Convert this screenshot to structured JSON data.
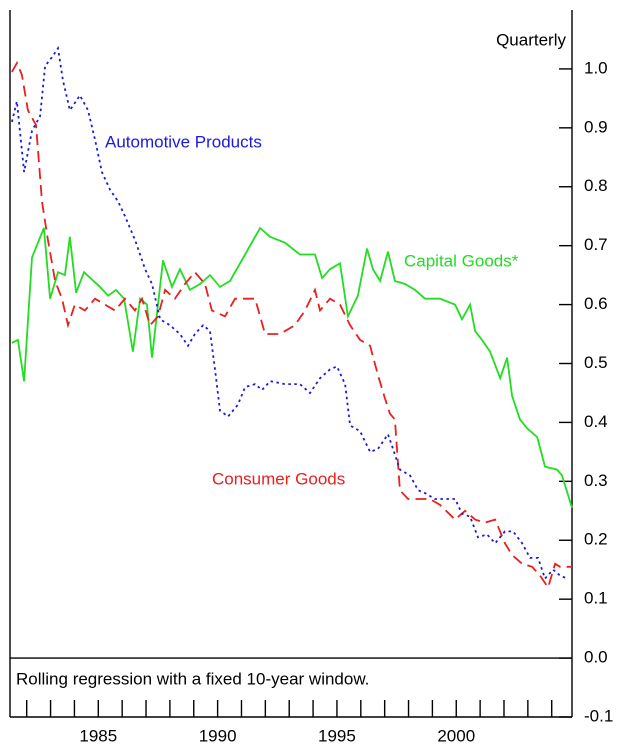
{
  "chart_data": {
    "type": "line",
    "title": "Quarterly",
    "note": "Rolling regression with a fixed 10-year window.",
    "xlim": [
      1981.3,
      2004.85
    ],
    "ylim": [
      -0.1,
      1.1
    ],
    "xticks": [
      1985,
      1990,
      1995,
      2000
    ],
    "x_minor_ticks": [
      1982,
      1983,
      1984,
      1985,
      1986,
      1987,
      1988,
      1989,
      1990,
      1991,
      1992,
      1993,
      1994,
      1995,
      1996,
      1997,
      1998,
      1999,
      2000,
      2001,
      2002,
      2003,
      2004
    ],
    "yticks": [
      -0.1,
      {
        "value": 0,
        "label": "0.0"
      },
      0.1,
      0.2,
      0.3,
      0.4,
      0.5,
      0.6,
      0.7,
      0.8,
      0.9,
      {
        "value": 1,
        "label": "1.0"
      }
    ],
    "series": [
      {
        "name": "Capital Goods*",
        "color": "#22dd22",
        "dash": "solid",
        "x": [
          1981.38,
          1981.63,
          1981.89,
          1982.22,
          1982.72,
          1982.98,
          1983.31,
          1983.6,
          1983.81,
          1984.07,
          1984.4,
          1985.07,
          1985.41,
          1985.74,
          1986.08,
          1986.45,
          1986.75,
          1987.04,
          1987.25,
          1987.71,
          1988.09,
          1988.42,
          1988.84,
          1989.26,
          1989.68,
          1990.1,
          1990.52,
          1991.15,
          1991.78,
          1992.2,
          1992.82,
          1993.45,
          1994.08,
          1994.38,
          1994.71,
          1995.13,
          1995.46,
          1995.88,
          1996.26,
          1996.51,
          1996.81,
          1997.14,
          1997.43,
          1997.85,
          1998.27,
          1998.69,
          1999.32,
          1999.95,
          2000.24,
          2000.58,
          2000.79,
          2001.08,
          2001.42,
          2001.84,
          2002.13,
          2002.34,
          2002.67,
          2002.97,
          2003.39,
          2003.72,
          2004.22,
          2004.43,
          2004.85
        ],
        "values": [
          0.535,
          0.54,
          0.47,
          0.68,
          0.73,
          0.61,
          0.655,
          0.65,
          0.715,
          0.62,
          0.655,
          0.63,
          0.615,
          0.625,
          0.61,
          0.52,
          0.61,
          0.6,
          0.51,
          0.675,
          0.63,
          0.66,
          0.625,
          0.635,
          0.65,
          0.63,
          0.64,
          0.685,
          0.73,
          0.715,
          0.705,
          0.685,
          0.685,
          0.645,
          0.66,
          0.67,
          0.58,
          0.615,
          0.695,
          0.66,
          0.64,
          0.69,
          0.64,
          0.635,
          0.625,
          0.61,
          0.61,
          0.6,
          0.575,
          0.6,
          0.555,
          0.54,
          0.52,
          0.475,
          0.51,
          0.445,
          0.405,
          0.39,
          0.375,
          0.325,
          0.32,
          0.31,
          0.255
        ]
      },
      {
        "name": "Consumer Goods",
        "color": "#e8201e",
        "dash": "dashed",
        "x": [
          1981.38,
          1981.59,
          1981.8,
          1982.05,
          1982.39,
          1982.64,
          1982.89,
          1983.19,
          1983.48,
          1983.73,
          1984.02,
          1984.44,
          1984.86,
          1985.28,
          1985.7,
          1986.12,
          1986.54,
          1986.83,
          1987.17,
          1987.5,
          1987.8,
          1988.21,
          1988.63,
          1989.05,
          1989.47,
          1989.76,
          1990.31,
          1990.73,
          1991.15,
          1991.57,
          1991.99,
          1992.61,
          1993.24,
          1993.66,
          1994.08,
          1994.29,
          1994.71,
          1995.13,
          1995.55,
          1995.97,
          1996.39,
          1996.72,
          1997.02,
          1997.22,
          1997.43,
          1997.64,
          1997.98,
          1998.4,
          1998.9,
          1999.32,
          1999.95,
          2000.37,
          2000.79,
          2001.21,
          2001.63,
          2002.04,
          2002.34,
          2002.76,
          2003.18,
          2003.51,
          2003.85,
          2004.14,
          2004.35,
          2004.85
        ],
        "values": [
          0.995,
          1.01,
          0.99,
          0.93,
          0.905,
          0.775,
          0.71,
          0.64,
          0.61,
          0.565,
          0.6,
          0.59,
          0.61,
          0.6,
          0.59,
          0.61,
          0.59,
          0.61,
          0.565,
          0.58,
          0.625,
          0.61,
          0.635,
          0.655,
          0.635,
          0.59,
          0.58,
          0.61,
          0.61,
          0.61,
          0.55,
          0.55,
          0.565,
          0.59,
          0.625,
          0.59,
          0.61,
          0.6,
          0.565,
          0.54,
          0.53,
          0.48,
          0.44,
          0.415,
          0.405,
          0.285,
          0.27,
          0.27,
          0.27,
          0.26,
          0.235,
          0.25,
          0.235,
          0.23,
          0.235,
          0.195,
          0.175,
          0.16,
          0.155,
          0.14,
          0.12,
          0.16,
          0.155,
          0.155
        ]
      },
      {
        "name": "Automotive Products",
        "color": "#1a1adf",
        "dash": "dotted",
        "x": [
          1981.38,
          1981.59,
          1981.89,
          1982.22,
          1982.56,
          1982.77,
          1983.06,
          1983.31,
          1983.52,
          1983.81,
          1984.23,
          1984.57,
          1984.86,
          1985.15,
          1985.49,
          1985.83,
          1986.12,
          1986.54,
          1986.96,
          1987.25,
          1987.59,
          1988.0,
          1988.42,
          1988.76,
          1989.05,
          1989.39,
          1989.68,
          1989.89,
          1990.1,
          1990.44,
          1990.85,
          1991.15,
          1991.57,
          1991.86,
          1992.2,
          1992.82,
          1993.45,
          1993.87,
          1994.29,
          1994.71,
          1995.0,
          1995.34,
          1995.55,
          1995.97,
          1996.39,
          1996.72,
          1997.14,
          1997.35,
          1997.64,
          1998.06,
          1998.4,
          1998.69,
          1999.11,
          1999.53,
          1999.95,
          2000.24,
          2000.58,
          2000.91,
          2001.29,
          2001.63,
          2002.04,
          2002.38,
          2002.76,
          2003.09,
          2003.43,
          2003.72,
          2004.06,
          2004.35,
          2004.64
        ],
        "values": [
          0.91,
          0.945,
          0.825,
          0.895,
          0.92,
          1.005,
          1.02,
          1.035,
          0.98,
          0.93,
          0.955,
          0.93,
          0.88,
          0.825,
          0.795,
          0.775,
          0.75,
          0.71,
          0.66,
          0.635,
          0.575,
          0.565,
          0.55,
          0.53,
          0.55,
          0.565,
          0.555,
          0.49,
          0.42,
          0.41,
          0.43,
          0.46,
          0.465,
          0.455,
          0.47,
          0.465,
          0.465,
          0.45,
          0.475,
          0.49,
          0.495,
          0.465,
          0.395,
          0.385,
          0.35,
          0.355,
          0.38,
          0.355,
          0.32,
          0.31,
          0.285,
          0.28,
          0.27,
          0.27,
          0.27,
          0.245,
          0.24,
          0.205,
          0.21,
          0.195,
          0.215,
          0.215,
          0.195,
          0.17,
          0.17,
          0.135,
          0.15,
          0.14,
          0.135
        ]
      }
    ]
  }
}
